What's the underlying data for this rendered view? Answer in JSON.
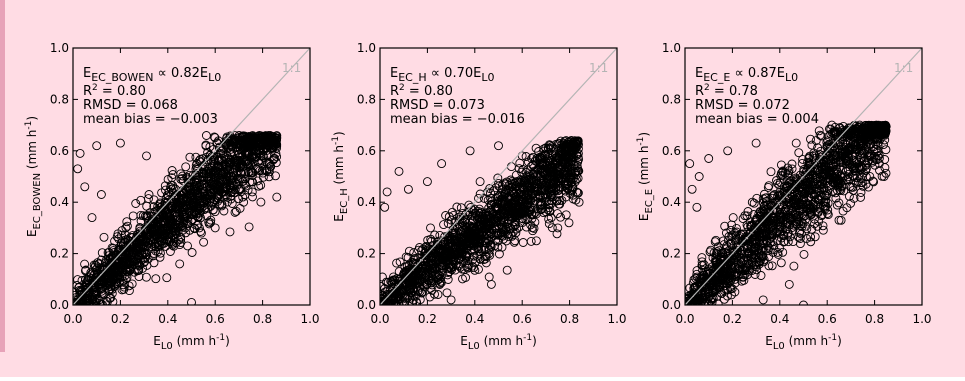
{
  "figure": {
    "background": "#ffdce4",
    "border_color": "#e7a2b8",
    "point_color": "#000000",
    "reference_line_color": "#b4b4b4"
  },
  "chart_data": [
    {
      "type": "scatter",
      "xlim": [
        0,
        1.0
      ],
      "ylim": [
        0,
        1.0
      ],
      "grid": false,
      "xticks": [
        "0.0",
        "0.2",
        "0.4",
        "0.6",
        "0.8",
        "1.0"
      ],
      "yticks": [
        "0.0",
        "0.2",
        "0.4",
        "0.6",
        "0.8",
        "1.0"
      ],
      "xlabel_base": "E",
      "xlabel_sub": "L0",
      "xlabel_units": " (mm h",
      "xlabel_exp": "-1",
      "xlabel_close": ")",
      "ylabel_base": "E",
      "ylabel_sub": "EC_BOWEN",
      "ylabel_units": " (mm h",
      "ylabel_exp": "-1",
      "ylabel_close": ")",
      "eq_lhs_base": "E",
      "eq_lhs_sub": "EC_BOWEN",
      "eq_mid": " ∝ 0.82E",
      "eq_rhs_sub": "L0",
      "r2_prefix": "R",
      "r2_exp": "2",
      "r2_value": " = 0.80",
      "rmsd": "RMSD = 0.068",
      "mean_bias": "mean bias = −0.003",
      "reference_label": "1:1",
      "slope": 0.82,
      "cloud": {
        "x_range": [
          0.0,
          0.86
        ],
        "spread": 0.065,
        "max_y": 0.66,
        "point_count": 1600
      },
      "outliers": [
        {
          "x": 0.03,
          "y": 0.59
        },
        {
          "x": 0.1,
          "y": 0.62
        },
        {
          "x": 0.02,
          "y": 0.53
        },
        {
          "x": 0.05,
          "y": 0.46
        },
        {
          "x": 0.12,
          "y": 0.43
        },
        {
          "x": 0.2,
          "y": 0.63
        },
        {
          "x": 0.31,
          "y": 0.58
        },
        {
          "x": 0.5,
          "y": 0.01
        },
        {
          "x": 0.66,
          "y": 0.64
        },
        {
          "x": 0.82,
          "y": 0.55
        },
        {
          "x": 0.86,
          "y": 0.42
        },
        {
          "x": 0.77,
          "y": 0.63
        },
        {
          "x": 0.72,
          "y": 0.4
        },
        {
          "x": 0.6,
          "y": 0.3
        },
        {
          "x": 0.45,
          "y": 0.16
        },
        {
          "x": 0.08,
          "y": 0.34
        }
      ]
    },
    {
      "type": "scatter",
      "xlim": [
        0,
        1.0
      ],
      "ylim": [
        0,
        1.0
      ],
      "grid": false,
      "xticks": [
        "0.0",
        "0.2",
        "0.4",
        "0.6",
        "0.8",
        "1.0"
      ],
      "yticks": [
        "0.0",
        "0.2",
        "0.4",
        "0.6",
        "0.8",
        "1.0"
      ],
      "xlabel_base": "E",
      "xlabel_sub": "L0",
      "xlabel_units": " (mm h",
      "xlabel_exp": "-1",
      "xlabel_close": ")",
      "ylabel_base": "E",
      "ylabel_sub": "EC_H",
      "ylabel_units": " (mm h",
      "ylabel_exp": "-1",
      "ylabel_close": ")",
      "eq_lhs_base": "E",
      "eq_lhs_sub": "EC_H",
      "eq_mid": " ∝ 0.70E",
      "eq_rhs_sub": "L0",
      "r2_prefix": "R",
      "r2_exp": "2",
      "r2_value": " = 0.80",
      "rmsd": "RMSD = 0.073",
      "mean_bias": "mean bias = −0.016",
      "reference_label": "1:1",
      "slope": 0.7,
      "cloud": {
        "x_range": [
          0.0,
          0.84
        ],
        "spread": 0.06,
        "max_y": 0.64,
        "point_count": 1600
      },
      "outliers": [
        {
          "x": 0.03,
          "y": 0.44
        },
        {
          "x": 0.08,
          "y": 0.52
        },
        {
          "x": 0.12,
          "y": 0.45
        },
        {
          "x": 0.02,
          "y": 0.38
        },
        {
          "x": 0.3,
          "y": 0.02
        },
        {
          "x": 0.47,
          "y": 0.08
        },
        {
          "x": 0.6,
          "y": 0.58
        },
        {
          "x": 0.72,
          "y": 0.52
        },
        {
          "x": 0.83,
          "y": 0.44
        },
        {
          "x": 0.84,
          "y": 0.4
        },
        {
          "x": 0.5,
          "y": 0.62
        },
        {
          "x": 0.38,
          "y": 0.6
        },
        {
          "x": 0.66,
          "y": 0.25
        },
        {
          "x": 0.75,
          "y": 0.3
        },
        {
          "x": 0.2,
          "y": 0.48
        },
        {
          "x": 0.26,
          "y": 0.55
        }
      ]
    },
    {
      "type": "scatter",
      "xlim": [
        0,
        1.0
      ],
      "ylim": [
        0,
        1.0
      ],
      "grid": false,
      "xticks": [
        "0.0",
        "0.2",
        "0.4",
        "0.6",
        "0.8",
        "1.0"
      ],
      "yticks": [
        "0.0",
        "0.2",
        "0.4",
        "0.6",
        "0.8",
        "1.0"
      ],
      "xlabel_base": "E",
      "xlabel_sub": "L0",
      "xlabel_units": " (mm h",
      "xlabel_exp": "-1",
      "xlabel_close": ")",
      "ylabel_base": "E",
      "ylabel_sub": "EC_E",
      "ylabel_units": " (mm h",
      "ylabel_exp": "-1",
      "ylabel_close": ")",
      "eq_lhs_base": "E",
      "eq_lhs_sub": "EC_E",
      "eq_mid": " ∝ 0.87E",
      "eq_rhs_sub": "L0",
      "r2_prefix": "R",
      "r2_exp": "2",
      "r2_value": " = 0.78",
      "rmsd": "RMSD = 0.072",
      "mean_bias": "mean bias = 0.004",
      "reference_label": "1:1",
      "slope": 0.87,
      "cloud": {
        "x_range": [
          0.0,
          0.85
        ],
        "spread": 0.075,
        "max_y": 0.7,
        "point_count": 1600
      },
      "outliers": [
        {
          "x": 0.02,
          "y": 0.55
        },
        {
          "x": 0.06,
          "y": 0.5
        },
        {
          "x": 0.1,
          "y": 0.57
        },
        {
          "x": 0.03,
          "y": 0.45
        },
        {
          "x": 0.18,
          "y": 0.6
        },
        {
          "x": 0.3,
          "y": 0.63
        },
        {
          "x": 0.5,
          "y": 0.0
        },
        {
          "x": 0.33,
          "y": 0.02
        },
        {
          "x": 0.75,
          "y": 0.62
        },
        {
          "x": 0.82,
          "y": 0.55
        },
        {
          "x": 0.84,
          "y": 0.5
        },
        {
          "x": 0.7,
          "y": 0.66
        },
        {
          "x": 0.62,
          "y": 0.7
        },
        {
          "x": 0.65,
          "y": 0.33
        },
        {
          "x": 0.05,
          "y": 0.38
        },
        {
          "x": 0.44,
          "y": 0.08
        }
      ]
    }
  ]
}
